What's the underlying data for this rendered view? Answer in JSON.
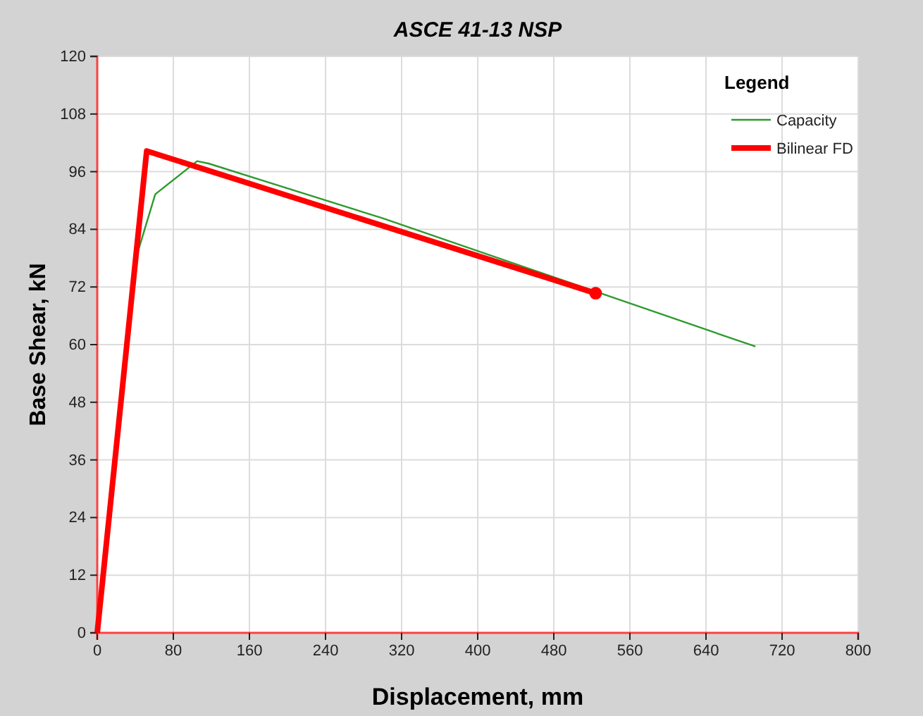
{
  "chart_data": {
    "type": "line",
    "title": "ASCE 41-13 NSP",
    "xlabel": "Displacement, mm",
    "ylabel": "Base Shear, kN",
    "legend_title": "Legend",
    "xlim": [
      0,
      800
    ],
    "xticks": [
      0,
      80,
      160,
      240,
      320,
      400,
      480,
      560,
      640,
      720,
      800
    ],
    "ylim": [
      0,
      120
    ],
    "yticks": [
      0,
      12,
      24,
      36,
      48,
      60,
      72,
      84,
      96,
      108,
      120
    ],
    "grid": true,
    "legend": "top right",
    "line_style": "solid",
    "series": [
      {
        "name": "Capacity",
        "color": "#2e9a2e",
        "x": [
          0,
          43,
          61,
          105,
          117,
          300,
          692
        ],
        "values": [
          0,
          79.5,
          91.3,
          98.2,
          97.7,
          86.3,
          59.6
        ]
      },
      {
        "name": "Bilinear FD",
        "color": "#ff0000",
        "x": [
          0,
          52,
          524
        ],
        "values": [
          0,
          100.3,
          70.7
        ]
      },
      {
        "type": "scatter",
        "marker": "circle",
        "color": "#ff0000",
        "x": [
          524
        ],
        "values": [
          70.7
        ]
      }
    ]
  }
}
